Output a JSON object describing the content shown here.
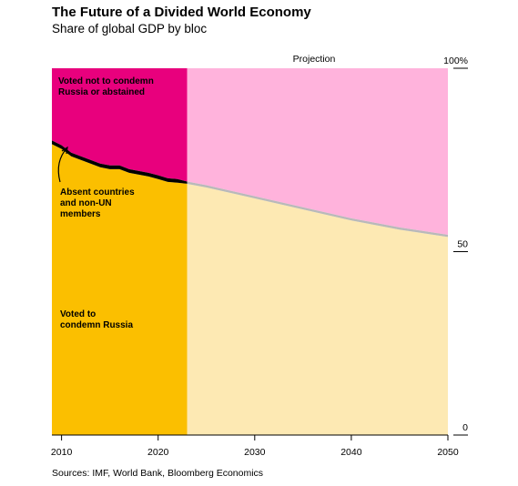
{
  "title": "The Future of a Divided World Economy",
  "subtitle": "Share of global GDP by bloc",
  "source": "Sources: IMF, World Bank, Bloomberg Economics",
  "chart_data": {
    "type": "area",
    "xlim": [
      2009,
      2050
    ],
    "ylim": [
      0,
      100
    ],
    "x_ticks": [
      "2010",
      "2020",
      "2030",
      "2040",
      "2050"
    ],
    "y_ticks": [
      {
        "value": 0,
        "label": "0"
      },
      {
        "value": 50,
        "label": "50"
      },
      {
        "value": 100,
        "label": "100%"
      }
    ],
    "projection_label": "Projection",
    "projection_start": 2023,
    "series": [
      {
        "name": "Voted to condemn Russia",
        "role": "bottom",
        "color_historical": "#fbbf00",
        "color_projection": "#fde9b3"
      },
      {
        "name": "Absent countries and non-UN members",
        "role": "middle",
        "color_historical": "#000000",
        "color_projection": "#b9b9b9"
      },
      {
        "name": "Voted not to condemn Russia or abstained",
        "role": "top",
        "color_historical": "#e8007d",
        "color_projection": "#ffb3dc"
      }
    ],
    "labels": {
      "top": [
        "Voted not to condemn",
        "Russia or abstained"
      ],
      "middle": [
        "Absent countries",
        "and non-UN",
        "members"
      ],
      "bottom": [
        "Voted to",
        "condemn Russia"
      ]
    },
    "x": [
      2009,
      2010,
      2011,
      2012,
      2013,
      2014,
      2015,
      2016,
      2017,
      2018,
      2019,
      2020,
      2021,
      2022,
      2023,
      2025,
      2030,
      2035,
      2040,
      2045,
      2050
    ],
    "condemn_share": [
      79.3,
      78.0,
      76.0,
      75.0,
      74.0,
      73.0,
      72.5,
      72.5,
      71.5,
      71.0,
      70.5,
      69.8,
      69.0,
      68.8,
      68.5,
      67.5,
      64.5,
      61.5,
      58.5,
      56.0,
      54.0
    ],
    "absent_share": [
      1.0,
      1.0,
      1.0,
      1.0,
      1.0,
      1.0,
      1.0,
      1.0,
      1.0,
      1.0,
      1.0,
      1.0,
      1.0,
      1.0,
      0.6,
      0.6,
      0.6,
      0.6,
      0.6,
      0.6,
      0.6
    ]
  }
}
